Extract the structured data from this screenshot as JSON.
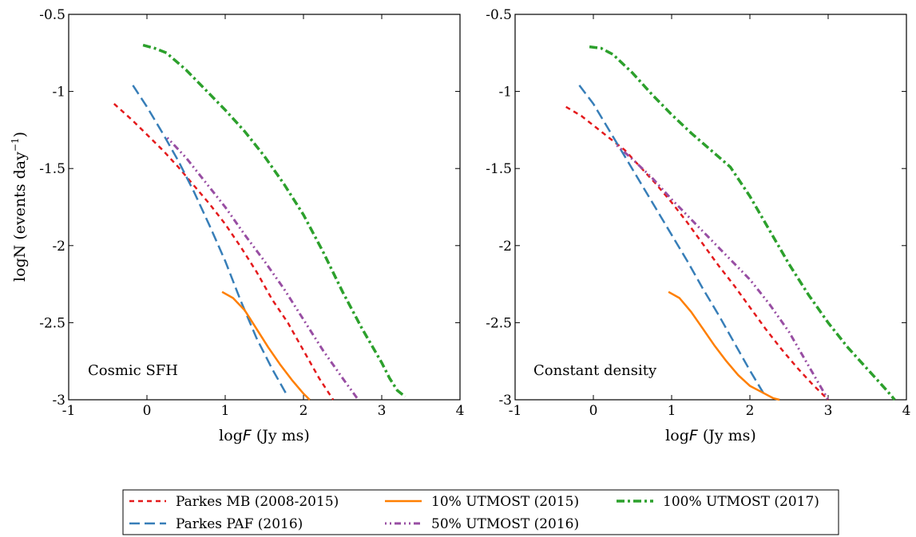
{
  "chart_data": [
    {
      "type": "line",
      "annotation": "Cosmic SFH",
      "xlabel_text": "log",
      "xlabel_symbol": "F",
      "xlabel_unit": " (Jy ms)",
      "ylabel": "logN (events day",
      "ylabel_sup": "−1",
      "ylabel_close": ")",
      "xlim": [
        -1,
        4
      ],
      "ylim": [
        -3,
        -0.5
      ],
      "xticks": [
        -1,
        0,
        1,
        2,
        3,
        4
      ],
      "xtick_labels": [
        "-1",
        "0",
        "1",
        "2",
        "3",
        "4"
      ],
      "yticks": [
        -3,
        -2.5,
        -2,
        -1.5,
        -1,
        -0.5
      ],
      "ytick_labels": [
        "-3",
        "-2.5",
        "-2",
        "-1.5",
        "-1",
        "-0.5"
      ],
      "series": [
        {
          "key": "mb",
          "x": [
            -0.42,
            -0.2,
            0.0,
            0.2,
            0.4,
            0.6,
            0.8,
            1.0,
            1.2,
            1.4,
            1.6,
            1.8,
            2.0,
            2.2,
            2.38
          ],
          "y": [
            -1.08,
            -1.18,
            -1.28,
            -1.38,
            -1.49,
            -1.61,
            -1.73,
            -1.86,
            -2.01,
            -2.17,
            -2.35,
            -2.5,
            -2.68,
            -2.86,
            -3.0
          ]
        },
        {
          "key": "paf",
          "x": [
            -0.18,
            0.0,
            0.2,
            0.4,
            0.6,
            0.8,
            1.0,
            1.2,
            1.4,
            1.6,
            1.8
          ],
          "y": [
            -0.96,
            -1.1,
            -1.27,
            -1.45,
            -1.65,
            -1.87,
            -2.1,
            -2.36,
            -2.6,
            -2.8,
            -2.98
          ]
        },
        {
          "key": "u10",
          "x": [
            0.96,
            1.1,
            1.25,
            1.4,
            1.55,
            1.7,
            1.85,
            2.0,
            2.08
          ],
          "y": [
            -2.3,
            -2.34,
            -2.42,
            -2.54,
            -2.66,
            -2.77,
            -2.87,
            -2.96,
            -3.0
          ]
        },
        {
          "key": "u50",
          "x": [
            0.26,
            0.5,
            0.75,
            1.0,
            1.25,
            1.5,
            1.75,
            2.0,
            2.25,
            2.5,
            2.7
          ],
          "y": [
            -1.3,
            -1.43,
            -1.59,
            -1.75,
            -1.93,
            -2.1,
            -2.28,
            -2.48,
            -2.68,
            -2.86,
            -3.0
          ]
        },
        {
          "key": "u100",
          "x": [
            -0.05,
            0.1,
            0.25,
            0.5,
            0.75,
            1.0,
            1.25,
            1.5,
            1.75,
            2.0,
            2.25,
            2.5,
            2.75,
            3.0,
            3.1,
            3.2,
            3.3
          ],
          "y": [
            -0.7,
            -0.72,
            -0.75,
            -0.86,
            -0.99,
            -1.12,
            -1.26,
            -1.42,
            -1.6,
            -1.8,
            -2.04,
            -2.3,
            -2.54,
            -2.76,
            -2.86,
            -2.94,
            -2.98
          ]
        }
      ]
    },
    {
      "type": "line",
      "annotation": "Constant density",
      "xlabel_text": "log",
      "xlabel_symbol": "F",
      "xlabel_unit": " (Jy ms)",
      "xlim": [
        -1,
        4
      ],
      "ylim": [
        -3,
        -0.5
      ],
      "xticks": [
        -1,
        0,
        1,
        2,
        3,
        4
      ],
      "xtick_labels": [
        "-1",
        "0",
        "1",
        "2",
        "3",
        "4"
      ],
      "yticks": [
        -3,
        -2.5,
        -2,
        -1.5,
        -1,
        -0.5
      ],
      "ytick_labels": [
        "-3",
        "-2.5",
        "-2",
        "-1.5",
        "-1",
        "-0.5"
      ],
      "series": [
        {
          "key": "mb",
          "x": [
            -0.35,
            -0.15,
            0.0,
            0.2,
            0.4,
            0.6,
            0.8,
            1.0,
            1.2,
            1.4,
            1.6,
            1.8,
            2.0,
            2.2,
            2.4,
            2.6,
            2.8,
            3.0
          ],
          "y": [
            -1.1,
            -1.16,
            -1.22,
            -1.3,
            -1.38,
            -1.49,
            -1.6,
            -1.72,
            -1.85,
            -1.99,
            -2.13,
            -2.26,
            -2.4,
            -2.54,
            -2.67,
            -2.79,
            -2.9,
            -3.0
          ]
        },
        {
          "key": "paf",
          "x": [
            -0.18,
            0.0,
            0.2,
            0.4,
            0.6,
            0.8,
            1.0,
            1.2,
            1.4,
            1.6,
            1.8,
            2.0,
            2.2
          ],
          "y": [
            -0.96,
            -1.08,
            -1.25,
            -1.42,
            -1.59,
            -1.76,
            -1.93,
            -2.1,
            -2.28,
            -2.45,
            -2.63,
            -2.81,
            -2.98
          ]
        },
        {
          "key": "u10",
          "x": [
            0.96,
            1.1,
            1.25,
            1.4,
            1.55,
            1.7,
            1.85,
            2.0,
            2.15,
            2.3,
            2.38
          ],
          "y": [
            -2.3,
            -2.34,
            -2.43,
            -2.54,
            -2.65,
            -2.75,
            -2.84,
            -2.91,
            -2.95,
            -2.99,
            -3.0
          ]
        },
        {
          "key": "u50",
          "x": [
            0.3,
            0.5,
            0.75,
            1.0,
            1.25,
            1.5,
            1.75,
            2.0,
            2.25,
            2.5,
            2.75,
            3.0
          ],
          "y": [
            -1.35,
            -1.44,
            -1.56,
            -1.7,
            -1.83,
            -1.96,
            -2.09,
            -2.22,
            -2.38,
            -2.56,
            -2.78,
            -3.0
          ]
        },
        {
          "key": "u100",
          "x": [
            -0.05,
            0.1,
            0.25,
            0.5,
            0.75,
            1.0,
            1.25,
            1.5,
            1.75,
            2.0,
            2.25,
            2.5,
            2.75,
            3.0,
            3.25,
            3.5,
            3.75,
            3.85
          ],
          "y": [
            -0.71,
            -0.72,
            -0.76,
            -0.88,
            -1.02,
            -1.15,
            -1.27,
            -1.38,
            -1.49,
            -1.68,
            -1.9,
            -2.12,
            -2.32,
            -2.5,
            -2.66,
            -2.8,
            -2.94,
            -3.0
          ]
        }
      ]
    }
  ],
  "legend": {
    "position": "bottom-center",
    "items": [
      {
        "key": "mb",
        "label": "Parkes MB (2008-2015)",
        "color": "#e41a1c",
        "dash": "6,5",
        "width": 2.5
      },
      {
        "key": "paf",
        "label": "Parkes PAF (2016)",
        "color": "#377eb8",
        "dash": "13,6",
        "width": 2.5
      },
      {
        "key": "u10",
        "label": "10% UTMOST (2015)",
        "color": "#ff7f00",
        "dash": "",
        "width": 2.5
      },
      {
        "key": "u50",
        "label": "50% UTMOST (2016)",
        "color": "#984ea3",
        "dash": "2,4,2,4,8,4",
        "width": 3
      },
      {
        "key": "u100",
        "label": "100% UTMOST (2017)",
        "color": "#2ca02c",
        "dash": "10,4,3,4",
        "width": 3.5
      }
    ]
  }
}
